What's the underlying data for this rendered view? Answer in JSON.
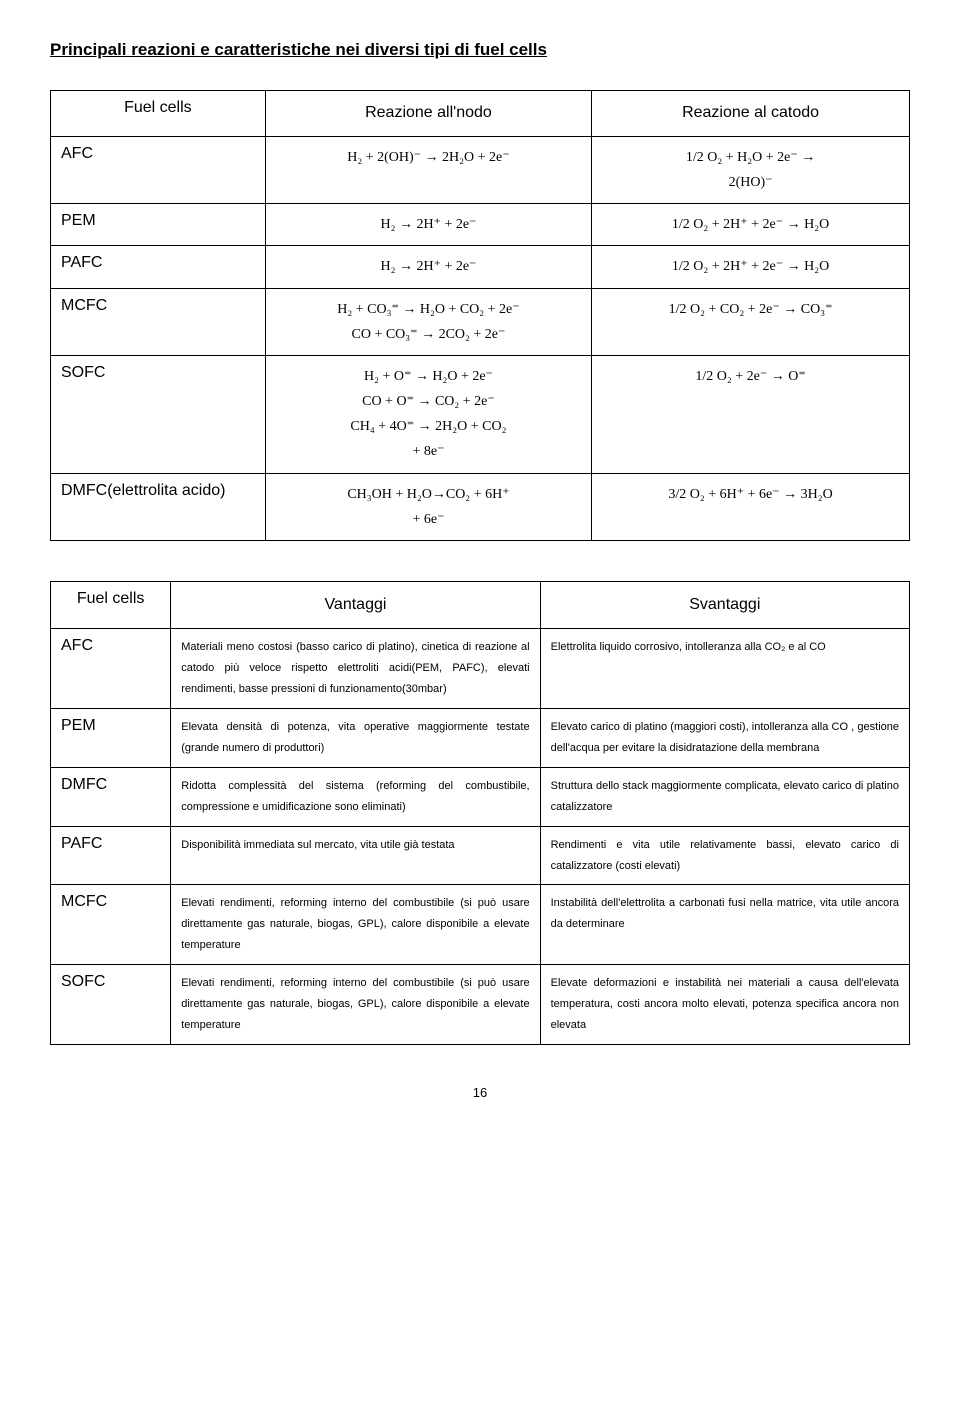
{
  "title": "Principali reazioni e caratteristiche nei diversi tipi di fuel cells",
  "page_number": "16",
  "table1": {
    "headers": [
      "Fuel cells",
      "Reazione all'nodo",
      "Reazione al catodo"
    ],
    "rows": [
      {
        "label": "AFC",
        "anode": "H₂ + 2(OH)⁻ → 2H₂O + 2e⁻",
        "cathode": "1/2 O₂ + H₂O + 2e⁻ →\n2(HO)⁻"
      },
      {
        "label": "PEM",
        "anode": "H₂ → 2H⁺ + 2e⁻",
        "cathode": "1/2 O₂ + 2H⁺ + 2e⁻ → H₂O"
      },
      {
        "label": "PAFC",
        "anode": "H₂ → 2H⁺ + 2e⁻",
        "cathode": "1/2 O₂ + 2H⁺ + 2e⁻ → H₂O"
      },
      {
        "label": "MCFC",
        "anode": "H₂ + CO₃⁼ → H₂O + CO₂ + 2e⁻\nCO + CO₃⁼ → 2CO₂ + 2e⁻",
        "cathode": "1/2 O₂ + CO₂ + 2e⁻ → CO₃⁼"
      },
      {
        "label": "SOFC",
        "anode": "H₂ + O⁼ → H₂O + 2e⁻\nCO + O⁼ → CO₂ + 2e⁻\nCH₄ + 4O⁼ → 2H₂O + CO₂\n+ 8e⁻",
        "cathode": "1/2 O₂ + 2e⁻ → O⁼"
      },
      {
        "label": "DMFC(elettrolita acido)",
        "anode": "CH₃OH + H₂O→CO₂ + 6H⁺\n+ 6e⁻",
        "cathode": "3/2 O₂ + 6H⁺ + 6e⁻ → 3H₂O"
      }
    ]
  },
  "table2": {
    "headers": [
      "Fuel cells",
      "Vantaggi",
      "Svantaggi"
    ],
    "rows": [
      {
        "label": "AFC",
        "vantaggi": "Materiali meno costosi (basso carico di platino), cinetica di reazione al catodo più veloce rispetto elettroliti acidi(PEM, PAFC), elevati rendimenti, basse pressioni di funzionamento(30mbar)",
        "svantaggi": "Elettrolita liquido corrosivo, intolleranza alla CO₂ e al CO"
      },
      {
        "label": "PEM",
        "vantaggi": "Elevata densità di potenza, vita operative maggiormente testate (grande numero di produttori)",
        "svantaggi": "Elevato carico di platino (maggiori costi), intolleranza alla CO , gestione dell'acqua per evitare la disidratazione della membrana"
      },
      {
        "label": "DMFC",
        "vantaggi": "Ridotta complessità del sistema (reforming del combustibile, compressione e umidificazione sono eliminati)",
        "svantaggi": "Struttura dello stack maggiormente complicata, elevato carico di platino catalizzatore"
      },
      {
        "label": "PAFC",
        "vantaggi": "Disponibilità immediata sul mercato, vita utile già testata",
        "svantaggi": "Rendimenti e vita utile relativamente bassi, elevato carico di catalizzatore (costi elevati)"
      },
      {
        "label": "MCFC",
        "vantaggi": "Elevati rendimenti, reforming interno del combustibile (si può usare direttamente gas naturale, biogas, GPL), calore disponibile a elevate temperature",
        "svantaggi": "Instabilità dell'elettrolita a carbonati fusi nella matrice, vita utile ancora da determinare"
      },
      {
        "label": "SOFC",
        "vantaggi": "Elevati rendimenti, reforming interno del combustibile (si può usare direttamente gas naturale, biogas, GPL), calore disponibile a elevate temperature",
        "svantaggi": "Elevate deformazioni e instabilità nei materiali a causa dell'elevata temperatura, costi ancora molto elevati, potenza specifica ancora non elevata"
      }
    ]
  }
}
